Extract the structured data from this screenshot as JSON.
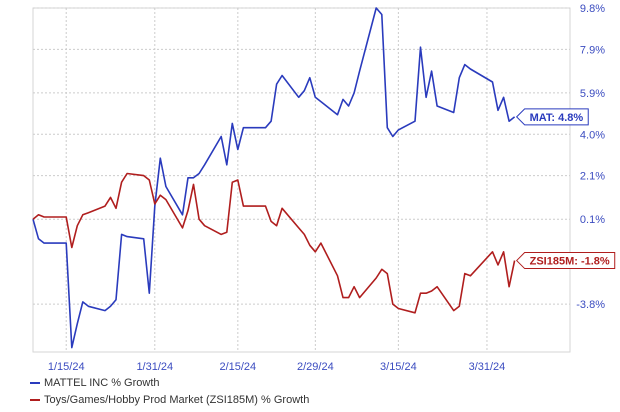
{
  "chart_data": {
    "type": "line",
    "title": "",
    "xlabel": "",
    "ylabel": "",
    "x_ticks": [
      "1/15/24",
      "1/31/24",
      "2/15/24",
      "2/29/24",
      "3/15/24",
      "3/31/24"
    ],
    "y_ticks": [
      "9.8%",
      "7.9%",
      "5.9%",
      "4.0%",
      "2.1%",
      "0.1%",
      "-3.8%"
    ],
    "ylim": [
      -6,
      9.8
    ],
    "grid": true,
    "legend_position": "bottom-left",
    "series": [
      {
        "name": "MATTEL INC % Growth",
        "label": "MAT: 4.8%",
        "color": "#2a3bbd",
        "points": [
          [
            "2024-01-09",
            0.1
          ],
          [
            "2024-01-10",
            -0.8
          ],
          [
            "2024-01-11",
            -1.0
          ],
          [
            "2024-01-12",
            -1.0
          ],
          [
            "2024-01-15",
            -1.0
          ],
          [
            "2024-01-16",
            -5.8
          ],
          [
            "2024-01-17",
            -4.7
          ],
          [
            "2024-01-18",
            -3.7
          ],
          [
            "2024-01-19",
            -3.9
          ],
          [
            "2024-01-22",
            -4.1
          ],
          [
            "2024-01-23",
            -3.9
          ],
          [
            "2024-01-24",
            -3.6
          ],
          [
            "2024-01-25",
            -0.6
          ],
          [
            "2024-01-26",
            -0.7
          ],
          [
            "2024-01-29",
            -0.8
          ],
          [
            "2024-01-30",
            -3.3
          ],
          [
            "2024-01-31",
            0.7
          ],
          [
            "2024-02-01",
            2.9
          ],
          [
            "2024-02-02",
            1.6
          ],
          [
            "2024-02-05",
            0.3
          ],
          [
            "2024-02-06",
            2.0
          ],
          [
            "2024-02-07",
            2.0
          ],
          [
            "2024-02-08",
            2.2
          ],
          [
            "2024-02-09",
            2.6
          ],
          [
            "2024-02-12",
            3.9
          ],
          [
            "2024-02-13",
            2.6
          ],
          [
            "2024-02-14",
            4.5
          ],
          [
            "2024-02-15",
            3.3
          ],
          [
            "2024-02-16",
            4.3
          ],
          [
            "2024-02-20",
            4.3
          ],
          [
            "2024-02-21",
            4.6
          ],
          [
            "2024-02-22",
            6.3
          ],
          [
            "2024-02-23",
            6.7
          ],
          [
            "2024-02-26",
            5.7
          ],
          [
            "2024-02-27",
            6.0
          ],
          [
            "2024-02-28",
            6.6
          ],
          [
            "2024-02-29",
            5.7
          ],
          [
            "2024-03-01",
            5.5
          ],
          [
            "2024-03-04",
            4.9
          ],
          [
            "2024-03-05",
            5.6
          ],
          [
            "2024-03-06",
            5.3
          ],
          [
            "2024-03-07",
            5.9
          ],
          [
            "2024-03-08",
            6.9
          ],
          [
            "2024-03-11",
            9.8
          ],
          [
            "2024-03-12",
            9.5
          ],
          [
            "2024-03-13",
            4.3
          ],
          [
            "2024-03-14",
            3.9
          ],
          [
            "2024-03-15",
            4.2
          ],
          [
            "2024-03-18",
            4.6
          ],
          [
            "2024-03-19",
            8.0
          ],
          [
            "2024-03-20",
            5.7
          ],
          [
            "2024-03-21",
            6.9
          ],
          [
            "2024-03-22",
            5.3
          ],
          [
            "2024-03-25",
            5.0
          ],
          [
            "2024-03-26",
            6.6
          ],
          [
            "2024-03-27",
            7.2
          ],
          [
            "2024-03-28",
            7.0
          ],
          [
            "2024-04-01",
            6.4
          ],
          [
            "2024-04-02",
            5.1
          ],
          [
            "2024-04-03",
            5.7
          ],
          [
            "2024-04-04",
            4.6
          ],
          [
            "2024-04-05",
            4.8
          ]
        ]
      },
      {
        "name": "Toys/Games/Hobby Prod Market (ZSI185M) % Growth",
        "label": "ZSI185M: -1.8%",
        "color": "#b01e1e",
        "points": [
          [
            "2024-01-09",
            0.1
          ],
          [
            "2024-01-10",
            0.3
          ],
          [
            "2024-01-11",
            0.2
          ],
          [
            "2024-01-12",
            0.2
          ],
          [
            "2024-01-15",
            0.2
          ],
          [
            "2024-01-16",
            -1.2
          ],
          [
            "2024-01-17",
            -0.2
          ],
          [
            "2024-01-18",
            0.3
          ],
          [
            "2024-01-19",
            0.4
          ],
          [
            "2024-01-22",
            0.7
          ],
          [
            "2024-01-23",
            1.1
          ],
          [
            "2024-01-24",
            0.6
          ],
          [
            "2024-01-25",
            1.8
          ],
          [
            "2024-01-26",
            2.2
          ],
          [
            "2024-01-29",
            2.1
          ],
          [
            "2024-01-30",
            1.9
          ],
          [
            "2024-01-31",
            0.8
          ],
          [
            "2024-02-01",
            1.2
          ],
          [
            "2024-02-02",
            1.0
          ],
          [
            "2024-02-05",
            -0.3
          ],
          [
            "2024-02-06",
            0.5
          ],
          [
            "2024-02-07",
            1.7
          ],
          [
            "2024-02-08",
            0.1
          ],
          [
            "2024-02-09",
            -0.2
          ],
          [
            "2024-02-12",
            -0.6
          ],
          [
            "2024-02-13",
            -0.5
          ],
          [
            "2024-02-14",
            1.8
          ],
          [
            "2024-02-15",
            1.9
          ],
          [
            "2024-02-16",
            0.7
          ],
          [
            "2024-02-20",
            0.7
          ],
          [
            "2024-02-21",
            0.0
          ],
          [
            "2024-02-22",
            -0.2
          ],
          [
            "2024-02-23",
            0.6
          ],
          [
            "2024-02-26",
            -0.3
          ],
          [
            "2024-02-27",
            -0.6
          ],
          [
            "2024-02-28",
            -1.1
          ],
          [
            "2024-02-29",
            -1.4
          ],
          [
            "2024-03-01",
            -1.0
          ],
          [
            "2024-03-04",
            -2.5
          ],
          [
            "2024-03-05",
            -3.5
          ],
          [
            "2024-03-06",
            -3.5
          ],
          [
            "2024-03-07",
            -3.0
          ],
          [
            "2024-03-08",
            -3.5
          ],
          [
            "2024-03-11",
            -2.6
          ],
          [
            "2024-03-12",
            -2.2
          ],
          [
            "2024-03-13",
            -2.4
          ],
          [
            "2024-03-14",
            -3.8
          ],
          [
            "2024-03-15",
            -4.0
          ],
          [
            "2024-03-18",
            -4.2
          ],
          [
            "2024-03-19",
            -3.3
          ],
          [
            "2024-03-20",
            -3.3
          ],
          [
            "2024-03-21",
            -3.2
          ],
          [
            "2024-03-22",
            -3.0
          ],
          [
            "2024-03-25",
            -4.1
          ],
          [
            "2024-03-26",
            -3.9
          ],
          [
            "2024-03-27",
            -2.4
          ],
          [
            "2024-03-28",
            -2.5
          ],
          [
            "2024-04-01",
            -1.4
          ],
          [
            "2024-04-02",
            -2.0
          ],
          [
            "2024-04-03",
            -1.4
          ],
          [
            "2024-04-04",
            -3.0
          ],
          [
            "2024-04-05",
            -1.8
          ]
        ]
      }
    ]
  }
}
